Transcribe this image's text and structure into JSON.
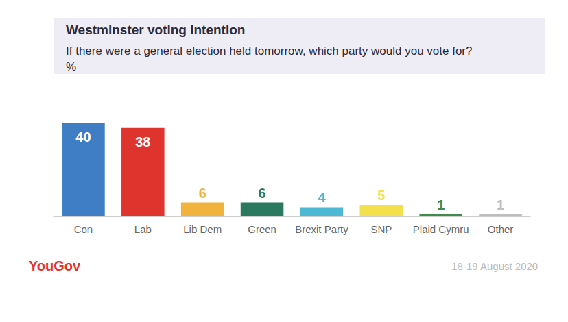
{
  "chart_data": {
    "type": "bar",
    "title": "Westminster voting intention",
    "subtitle": "If there were a general election held tomorrow, which party would you vote for? %",
    "categories": [
      "Con",
      "Lab",
      "Lib Dem",
      "Green",
      "Brexit Party",
      "SNP",
      "Plaid Cymru",
      "Other"
    ],
    "values": [
      40,
      38,
      6,
      6,
      4,
      5,
      1,
      1
    ],
    "colors": [
      "#3f7ec4",
      "#df342e",
      "#f2b33d",
      "#2b7a5f",
      "#4db8d4",
      "#f3e04a",
      "#3e8b4a",
      "#bdbdbd"
    ],
    "ylim": [
      0,
      40
    ],
    "grid": false,
    "data_labels": true,
    "tick_labels": "x",
    "source": "YouGov",
    "date": "18-19 August 2020"
  }
}
